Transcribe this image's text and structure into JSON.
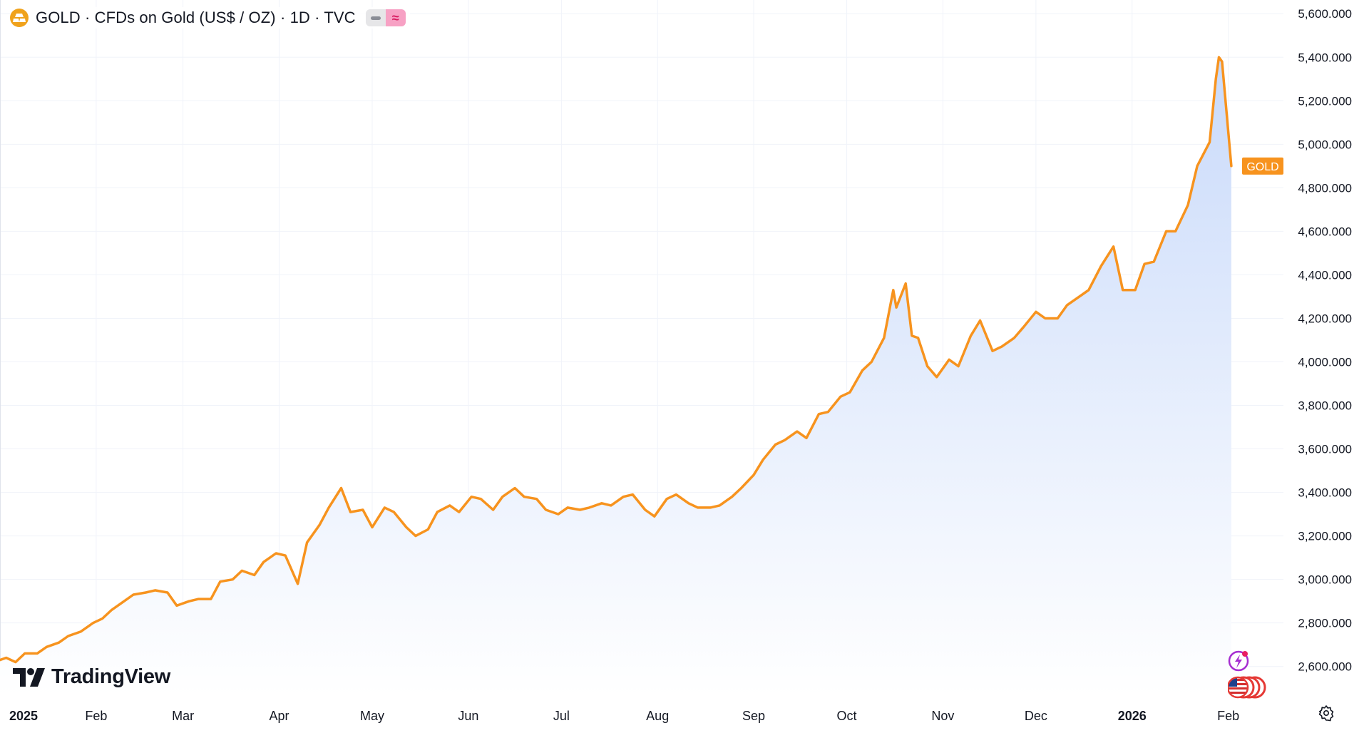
{
  "header": {
    "title": "GOLD · CFDs on Gold (US$ / OZ) · 1D · TVC",
    "logo_icon": "gold-bars-icon",
    "indicator_icons": [
      "minus-icon",
      "approx-icon"
    ]
  },
  "watermark": {
    "text": "TradingView",
    "icon": "tradingview-logo-icon"
  },
  "price_label": "GOLD",
  "colors": {
    "line": "#f7931e",
    "area_top": "#c9dafa",
    "area_bottom": "#ffffff",
    "grid": "#f0f3fa",
    "axis_text": "#131722",
    "price_label_bg": "#f7931e",
    "logo": "#f0a21b"
  },
  "chart_data": {
    "type": "area",
    "title": "GOLD · CFDs on Gold (US$ / OZ) · 1D · TVC",
    "xlabel": "",
    "ylabel": "",
    "x_tick_labels": [
      {
        "label": "2025",
        "bold": true
      },
      {
        "label": "Feb"
      },
      {
        "label": "Mar"
      },
      {
        "label": "Apr"
      },
      {
        "label": "May"
      },
      {
        "label": "Jun"
      },
      {
        "label": "Jul"
      },
      {
        "label": "Aug"
      },
      {
        "label": "Sep"
      },
      {
        "label": "Oct"
      },
      {
        "label": "Nov"
      },
      {
        "label": "Dec"
      },
      {
        "label": "2026",
        "bold": true
      },
      {
        "label": "Feb"
      }
    ],
    "y_tick_labels": [
      "5,600.000",
      "5,400.000",
      "5,200.000",
      "5,000.000",
      "4,800.000",
      "4,600.000",
      "4,400.000",
      "4,200.000",
      "4,000.000",
      "3,800.000",
      "3,600.000",
      "3,400.000",
      "3,200.000",
      "3,000.000",
      "2,800.000",
      "2,600.000"
    ],
    "y_ticks": [
      5600,
      5400,
      5200,
      5000,
      4800,
      4600,
      4400,
      4200,
      4000,
      3800,
      3600,
      3400,
      3200,
      3000,
      2800,
      2600
    ],
    "ylim": [
      2468,
      5663
    ],
    "grid": true,
    "series": [
      {
        "name": "GOLD",
        "points": [
          [
            "2025-01-01",
            2630
          ],
          [
            "2025-01-03",
            2640
          ],
          [
            "2025-01-06",
            2620
          ],
          [
            "2025-01-09",
            2660
          ],
          [
            "2025-01-13",
            2660
          ],
          [
            "2025-01-16",
            2690
          ],
          [
            "2025-01-20",
            2710
          ],
          [
            "2025-01-23",
            2740
          ],
          [
            "2025-01-27",
            2760
          ],
          [
            "2025-01-31",
            2800
          ],
          [
            "2025-02-03",
            2820
          ],
          [
            "2025-02-06",
            2860
          ],
          [
            "2025-02-10",
            2900
          ],
          [
            "2025-02-13",
            2930
          ],
          [
            "2025-02-17",
            2940
          ],
          [
            "2025-02-20",
            2950
          ],
          [
            "2025-02-24",
            2940
          ],
          [
            "2025-02-27",
            2880
          ],
          [
            "2025-03-03",
            2900
          ],
          [
            "2025-03-06",
            2910
          ],
          [
            "2025-03-10",
            2910
          ],
          [
            "2025-03-13",
            2990
          ],
          [
            "2025-03-17",
            3000
          ],
          [
            "2025-03-20",
            3040
          ],
          [
            "2025-03-24",
            3020
          ],
          [
            "2025-03-27",
            3080
          ],
          [
            "2025-03-31",
            3120
          ],
          [
            "2025-04-03",
            3110
          ],
          [
            "2025-04-07",
            2980
          ],
          [
            "2025-04-10",
            3170
          ],
          [
            "2025-04-14",
            3250
          ],
          [
            "2025-04-17",
            3330
          ],
          [
            "2025-04-21",
            3420
          ],
          [
            "2025-04-24",
            3310
          ],
          [
            "2025-04-28",
            3320
          ],
          [
            "2025-05-01",
            3240
          ],
          [
            "2025-05-05",
            3330
          ],
          [
            "2025-05-08",
            3310
          ],
          [
            "2025-05-12",
            3240
          ],
          [
            "2025-05-15",
            3200
          ],
          [
            "2025-05-19",
            3230
          ],
          [
            "2025-05-22",
            3310
          ],
          [
            "2025-05-26",
            3340
          ],
          [
            "2025-05-29",
            3310
          ],
          [
            "2025-06-02",
            3380
          ],
          [
            "2025-06-05",
            3370
          ],
          [
            "2025-06-09",
            3320
          ],
          [
            "2025-06-12",
            3380
          ],
          [
            "2025-06-16",
            3420
          ],
          [
            "2025-06-19",
            3380
          ],
          [
            "2025-06-23",
            3370
          ],
          [
            "2025-06-26",
            3320
          ],
          [
            "2025-06-30",
            3300
          ],
          [
            "2025-07-03",
            3330
          ],
          [
            "2025-07-07",
            3320
          ],
          [
            "2025-07-10",
            3330
          ],
          [
            "2025-07-14",
            3350
          ],
          [
            "2025-07-17",
            3340
          ],
          [
            "2025-07-21",
            3380
          ],
          [
            "2025-07-24",
            3390
          ],
          [
            "2025-07-28",
            3320
          ],
          [
            "2025-07-31",
            3290
          ],
          [
            "2025-08-04",
            3370
          ],
          [
            "2025-08-07",
            3390
          ],
          [
            "2025-08-11",
            3350
          ],
          [
            "2025-08-14",
            3330
          ],
          [
            "2025-08-18",
            3330
          ],
          [
            "2025-08-21",
            3340
          ],
          [
            "2025-08-25",
            3380
          ],
          [
            "2025-08-28",
            3420
          ],
          [
            "2025-09-01",
            3480
          ],
          [
            "2025-09-04",
            3550
          ],
          [
            "2025-09-08",
            3620
          ],
          [
            "2025-09-11",
            3640
          ],
          [
            "2025-09-15",
            3680
          ],
          [
            "2025-09-18",
            3650
          ],
          [
            "2025-09-22",
            3760
          ],
          [
            "2025-09-25",
            3770
          ],
          [
            "2025-09-29",
            3840
          ],
          [
            "2025-10-02",
            3860
          ],
          [
            "2025-10-06",
            3960
          ],
          [
            "2025-10-09",
            4000
          ],
          [
            "2025-10-13",
            4110
          ],
          [
            "2025-10-16",
            4330
          ],
          [
            "2025-10-17",
            4250
          ],
          [
            "2025-10-20",
            4360
          ],
          [
            "2025-10-22",
            4120
          ],
          [
            "2025-10-24",
            4110
          ],
          [
            "2025-10-27",
            3980
          ],
          [
            "2025-10-30",
            3930
          ],
          [
            "2025-11-03",
            4010
          ],
          [
            "2025-11-06",
            3980
          ],
          [
            "2025-11-10",
            4120
          ],
          [
            "2025-11-13",
            4190
          ],
          [
            "2025-11-17",
            4050
          ],
          [
            "2025-11-20",
            4070
          ],
          [
            "2025-11-24",
            4110
          ],
          [
            "2025-11-27",
            4160
          ],
          [
            "2025-12-01",
            4230
          ],
          [
            "2025-12-04",
            4200
          ],
          [
            "2025-12-08",
            4200
          ],
          [
            "2025-12-11",
            4260
          ],
          [
            "2025-12-15",
            4300
          ],
          [
            "2025-12-18",
            4330
          ],
          [
            "2025-12-22",
            4440
          ],
          [
            "2025-12-26",
            4530
          ],
          [
            "2025-12-29",
            4330
          ],
          [
            "2026-01-02",
            4330
          ],
          [
            "2026-01-05",
            4450
          ],
          [
            "2026-01-08",
            4460
          ],
          [
            "2026-01-12",
            4600
          ],
          [
            "2026-01-15",
            4600
          ],
          [
            "2026-01-19",
            4720
          ],
          [
            "2026-01-22",
            4900
          ],
          [
            "2026-01-26",
            5010
          ],
          [
            "2026-01-28",
            5300
          ],
          [
            "2026-01-29",
            5400
          ],
          [
            "2026-01-30",
            5380
          ],
          [
            "2026-02-02",
            4900
          ]
        ]
      }
    ],
    "last_value_label": "GOLD"
  }
}
